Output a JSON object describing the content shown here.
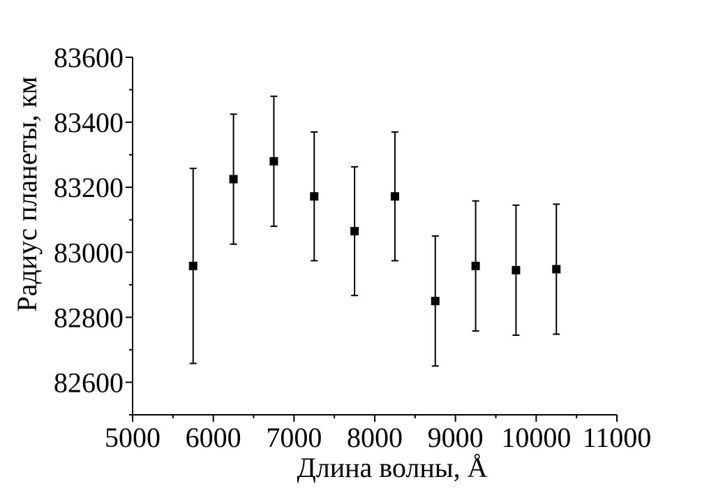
{
  "chart_data": {
    "type": "scatter",
    "xlabel": "Длина волны, Å",
    "ylabel": "Радиус планеты, км",
    "xlim": [
      5000,
      11000
    ],
    "ylim": [
      82500,
      83600
    ],
    "x_ticks": [
      5000,
      6000,
      7000,
      8000,
      9000,
      10000,
      11000
    ],
    "x_tick_labels": [
      "5000",
      "6000",
      "7000",
      "8000",
      "9000",
      "10000",
      "11000"
    ],
    "y_ticks": [
      82600,
      82800,
      83000,
      83200,
      83400,
      83600
    ],
    "y_tick_labels": [
      "82600",
      "82800",
      "83000",
      "83200",
      "83400",
      "83600"
    ],
    "grid": false,
    "marker_color": "#000000",
    "series": [
      {
        "x": [
          5750,
          6250,
          6750,
          7250,
          7750,
          8250,
          8750,
          9250,
          9750,
          10250
        ],
        "y": [
          82958,
          83225,
          83280,
          83172,
          83065,
          83172,
          82850,
          82958,
          82945,
          82948
        ],
        "yerr": [
          300,
          200,
          200,
          198,
          198,
          198,
          200,
          200,
          200,
          200
        ]
      }
    ]
  }
}
